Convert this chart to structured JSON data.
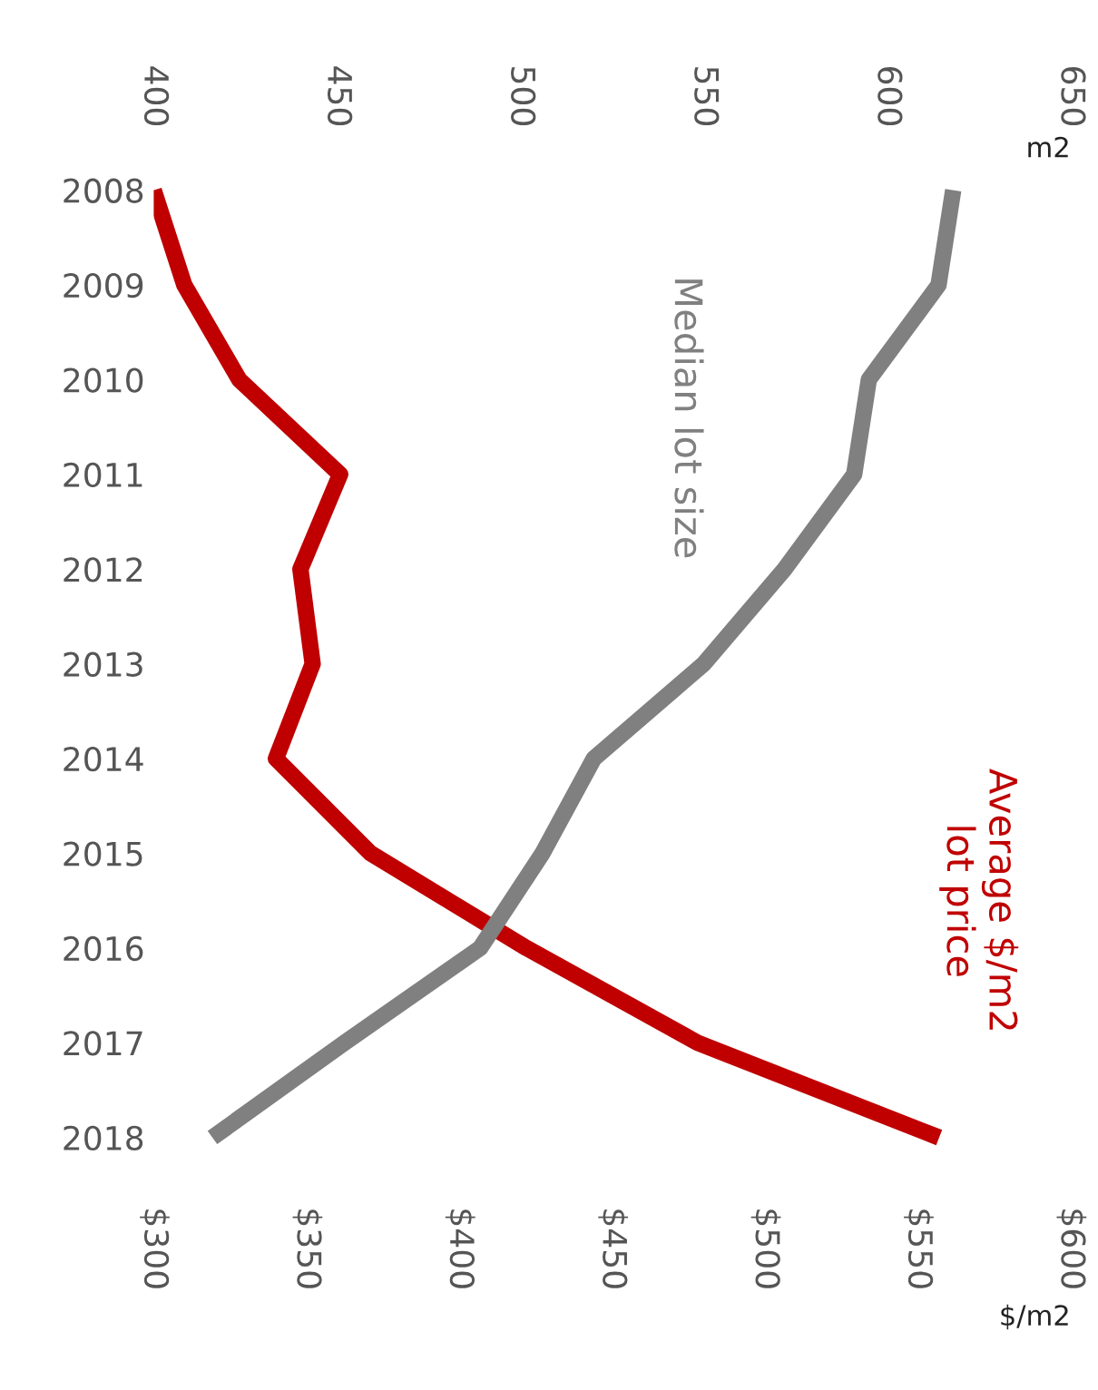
{
  "chart_data": {
    "type": "line",
    "orientation": "horizontal",
    "categories": [
      "2008",
      "2009",
      "2010",
      "2011",
      "2012",
      "2013",
      "2014",
      "2015",
      "2016",
      "2017",
      "2018"
    ],
    "series": [
      {
        "name": "Median lot size",
        "color": "#808080",
        "axis": "x2",
        "values": [
          618,
          614,
          595,
          591,
          572,
          550,
          520,
          506,
          489,
          452,
          416
        ]
      },
      {
        "name": "Average $/m2\nlot price",
        "color": "#c00000",
        "values": [
          300,
          310,
          328,
          361,
          348,
          352,
          340,
          371,
          422,
          478,
          557
        ]
      }
    ],
    "xlabel": "$/m2",
    "x2label": "m2",
    "xlim": [
      300,
      600
    ],
    "xticks": [
      {
        "value": 300,
        "label": "$300"
      },
      {
        "value": 350,
        "label": "$350"
      },
      {
        "value": 400,
        "label": "$400"
      },
      {
        "value": 450,
        "label": "$450"
      },
      {
        "value": 500,
        "label": "$500"
      },
      {
        "value": 550,
        "label": "$550"
      },
      {
        "value": 600,
        "label": "$600"
      }
    ],
    "x2lim": [
      400,
      650
    ],
    "x2ticks": [
      400,
      450,
      500,
      550,
      600,
      650
    ],
    "grid": false,
    "legend": false,
    "marker": "none",
    "line_style": "solid"
  }
}
